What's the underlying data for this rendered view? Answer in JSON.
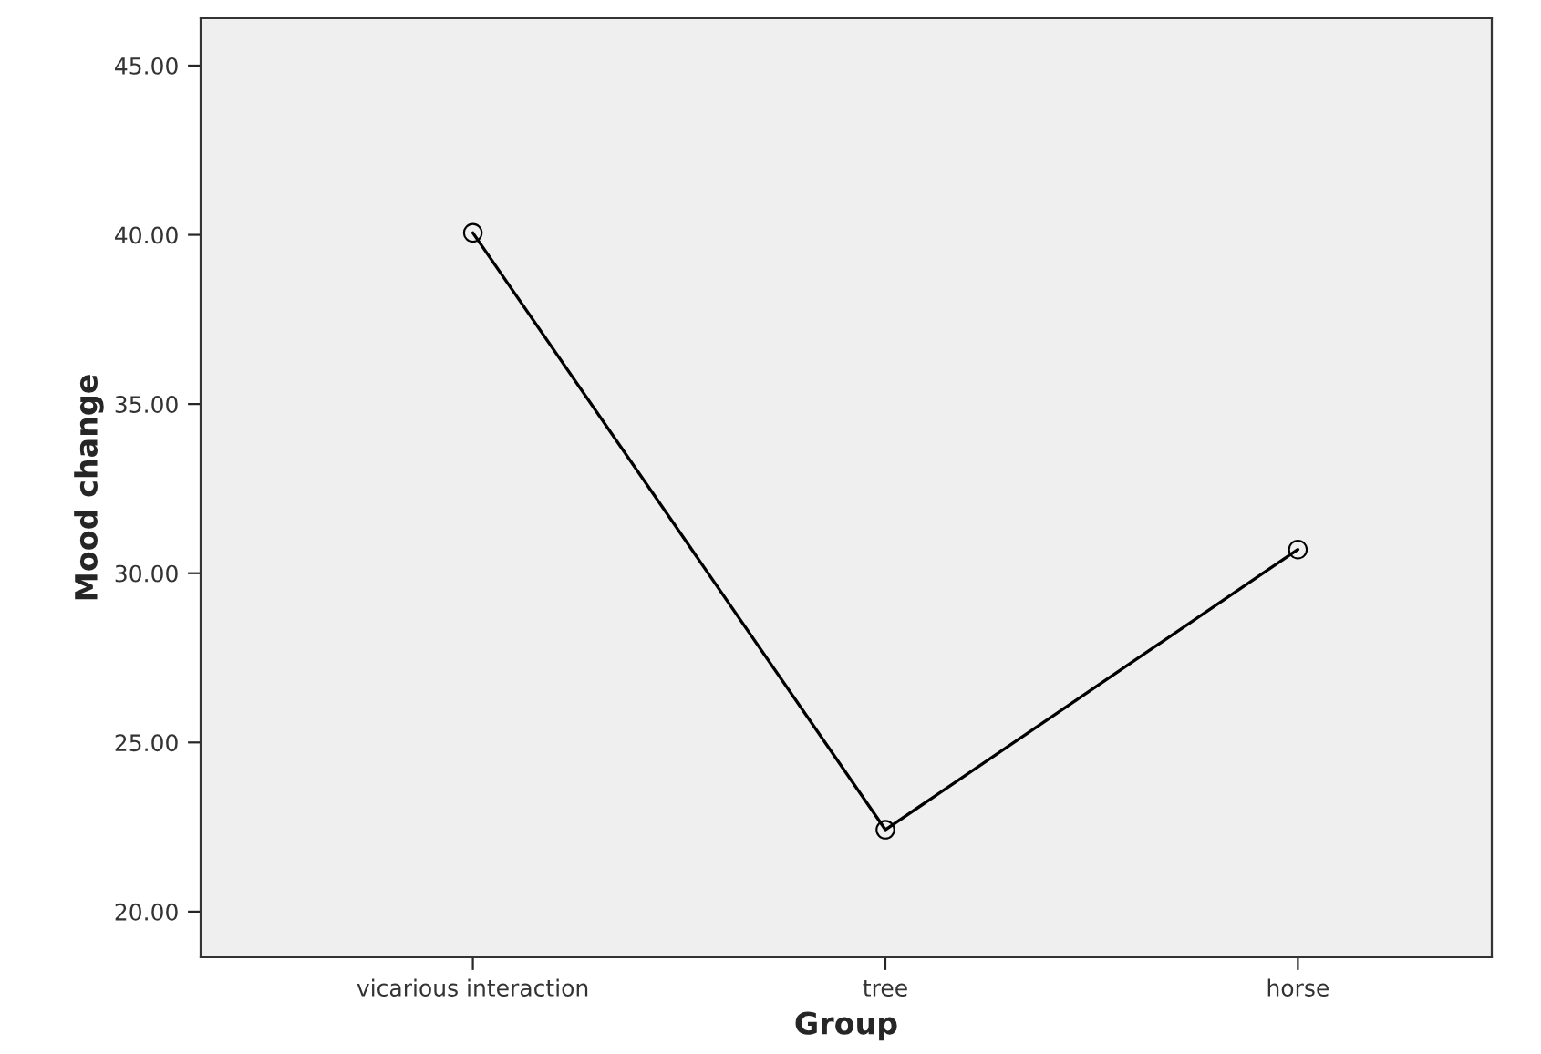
{
  "chart_data": {
    "type": "line",
    "xlabel": "Group",
    "ylabel": "Mood change",
    "categories": [
      "vicarious interaction",
      "tree",
      "horse"
    ],
    "series": [
      {
        "color": "#000000",
        "values": [
          40.06,
          22.42,
          30.7
        ]
      }
    ],
    "ylim": [
      18.65,
      46.4
    ],
    "yticks": [
      {
        "value": 20,
        "label": "20.00"
      },
      {
        "value": 25,
        "label": "25.00"
      },
      {
        "value": 30,
        "label": "30.00"
      },
      {
        "value": 35,
        "label": "35.00"
      },
      {
        "value": 40,
        "label": "40.00"
      },
      {
        "value": 45,
        "label": "45.00"
      }
    ],
    "marker": "circle",
    "line_style": "solid",
    "grid": false,
    "legend": false
  }
}
